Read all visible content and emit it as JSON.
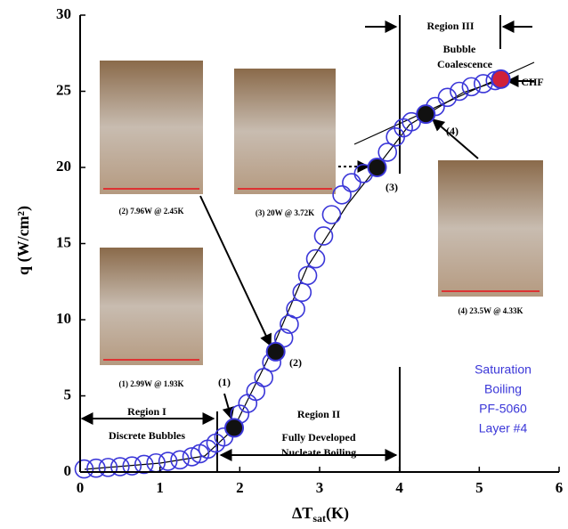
{
  "chart_data": {
    "type": "scatter",
    "x_label": {
      "main": "ΔT",
      "sub": "sat",
      "unit": "(K)"
    },
    "y_label": "q (W/cm²)",
    "xlim": [
      0,
      6
    ],
    "ylim": [
      0,
      30
    ],
    "xticks": [
      0,
      1,
      2,
      3,
      4,
      5,
      6
    ],
    "yticks": [
      0,
      5,
      10,
      15,
      20,
      25,
      30
    ],
    "series": [
      {
        "color": "#3a36d8",
        "x": [
          0.05,
          0.2,
          0.35,
          0.5,
          0.65,
          0.8,
          0.95,
          1.1,
          1.25,
          1.4,
          1.5,
          1.6,
          1.7,
          1.8,
          2.0,
          2.1,
          2.2,
          2.3,
          2.4,
          2.55,
          2.62,
          2.7,
          2.78,
          2.85,
          2.95,
          3.05,
          3.15,
          3.28,
          3.4,
          3.55,
          3.85,
          3.95,
          4.05,
          4.15,
          4.45,
          4.6,
          4.75,
          4.9,
          5.05,
          5.2
        ],
        "values": [
          0.2,
          0.25,
          0.3,
          0.35,
          0.4,
          0.5,
          0.6,
          0.7,
          0.8,
          1.0,
          1.2,
          1.5,
          1.9,
          2.3,
          3.8,
          4.5,
          5.3,
          6.2,
          7.2,
          8.8,
          9.7,
          10.7,
          11.8,
          12.9,
          14.0,
          15.5,
          16.9,
          18.2,
          19.0,
          19.6,
          21.0,
          22.0,
          22.6,
          23.0,
          24.0,
          24.6,
          25.0,
          25.3,
          25.5,
          25.7
        ]
      },
      {
        "color": "#111111",
        "x": [
          1.93,
          2.45,
          3.72,
          4.33
        ],
        "values": [
          2.9,
          7.9,
          20.0,
          23.5
        ]
      },
      {
        "color": "#d0203a",
        "x": [
          5.27
        ],
        "values": [
          25.8
        ]
      }
    ],
    "annotations": [
      "Region I",
      "Discrete Bubbles",
      "Region II",
      "Fully Developed",
      "Nucleate Boiling",
      "Region III",
      "Bubble",
      "Coalescence",
      "CHF",
      "(1)",
      "(2)",
      "(3)",
      "(4)"
    ],
    "photo_captions": [
      "(2) 7.96W @ 2.45K",
      "(3) 20W @ 3.72K",
      "(1) 2.99W @ 1.93K",
      "(4) 23.5W @ 4.33K"
    ],
    "legend_text": [
      "Saturation",
      "Boiling",
      "PF-5060",
      "Layer #4"
    ]
  }
}
